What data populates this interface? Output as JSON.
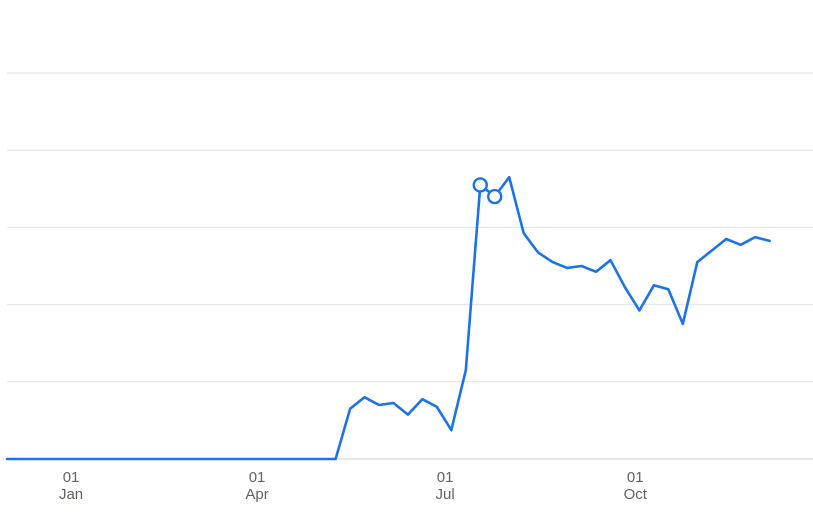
{
  "chart_data": {
    "type": "line",
    "grid": true,
    "ylim": [
      0,
      100
    ],
    "x_tick_labels": [
      {
        "day": "01",
        "month": "Jan",
        "date": "2021-01-01"
      },
      {
        "day": "01",
        "month": "Apr",
        "date": "2021-04-01"
      },
      {
        "day": "01",
        "month": "Jul",
        "date": "2021-07-01"
      },
      {
        "day": "01",
        "month": "Oct",
        "date": "2021-10-01"
      }
    ],
    "xlim": [
      "2020-12-01",
      "2021-12-26"
    ],
    "series": [
      {
        "color": "#1a73e8",
        "points": [
          {
            "x": "2020-12-01",
            "y": 0
          },
          {
            "x": "2021-05-09",
            "y": 0
          },
          {
            "x": "2021-05-16",
            "y": 13
          },
          {
            "x": "2021-05-23",
            "y": 16
          },
          {
            "x": "2021-05-30",
            "y": 14
          },
          {
            "x": "2021-06-06",
            "y": 14.5
          },
          {
            "x": "2021-06-13",
            "y": 11.5
          },
          {
            "x": "2021-06-20",
            "y": 15.5
          },
          {
            "x": "2021-06-27",
            "y": 13.5
          },
          {
            "x": "2021-07-04",
            "y": 7.5
          },
          {
            "x": "2021-07-11",
            "y": 23
          },
          {
            "x": "2021-07-18",
            "y": 71
          },
          {
            "x": "2021-07-25",
            "y": 68
          },
          {
            "x": "2021-08-01",
            "y": 73
          },
          {
            "x": "2021-08-08",
            "y": 58.5
          },
          {
            "x": "2021-08-15",
            "y": 53.5
          },
          {
            "x": "2021-08-22",
            "y": 51
          },
          {
            "x": "2021-08-29",
            "y": 49.5
          },
          {
            "x": "2021-09-05",
            "y": 50
          },
          {
            "x": "2021-09-12",
            "y": 48.5
          },
          {
            "x": "2021-09-19",
            "y": 51.5
          },
          {
            "x": "2021-09-26",
            "y": 44.5
          },
          {
            "x": "2021-10-03",
            "y": 38.5
          },
          {
            "x": "2021-10-10",
            "y": 45
          },
          {
            "x": "2021-10-17",
            "y": 44
          },
          {
            "x": "2021-10-24",
            "y": 35
          },
          {
            "x": "2021-10-31",
            "y": 51
          },
          {
            "x": "2021-11-07",
            "y": 54
          },
          {
            "x": "2021-11-14",
            "y": 57
          },
          {
            "x": "2021-11-21",
            "y": 55.5
          },
          {
            "x": "2021-11-28",
            "y": 57.5
          },
          {
            "x": "2021-12-05",
            "y": 56.5
          }
        ],
        "markers": [
          {
            "x": "2021-07-18",
            "y": 71
          },
          {
            "x": "2021-07-25",
            "y": 68
          }
        ]
      }
    ]
  }
}
